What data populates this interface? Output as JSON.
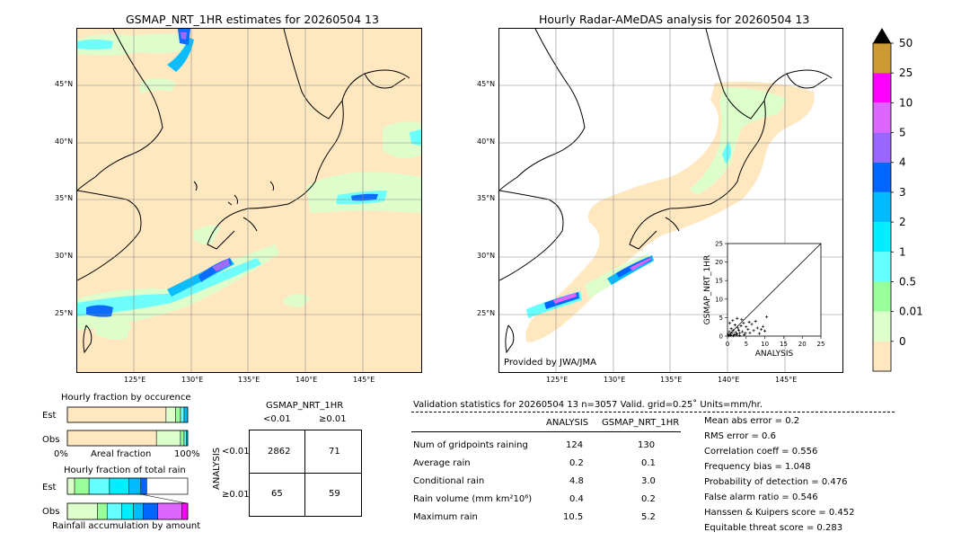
{
  "left_map": {
    "title": "GSMAP_NRT_1HR estimates for 20260504 13",
    "lat_labels": [
      "45°N",
      "40°N",
      "35°N",
      "30°N",
      "25°N"
    ],
    "lon_labels": [
      "125°E",
      "130°E",
      "135°E",
      "140°E",
      "145°E"
    ]
  },
  "right_map": {
    "title": "Hourly Radar-AMeDAS analysis for 20260504 13",
    "lat_labels": [
      "45°N",
      "40°N",
      "35°N",
      "30°N",
      "25°N"
    ],
    "lon_labels": [
      "125°E",
      "130°E",
      "135°E",
      "140°E",
      "145°E"
    ],
    "credit": "Provided by JWA/JMA"
  },
  "colorbar": {
    "labels": [
      "50",
      "25",
      "10",
      "5",
      "4",
      "3",
      "2",
      "1",
      "0.5",
      "0.01",
      "0"
    ],
    "colors": [
      "#cc9933",
      "#ff00ff",
      "#dd66ff",
      "#9966ff",
      "#0066ff",
      "#00bbff",
      "#00eeff",
      "#66ffff",
      "#99ff99",
      "#ddffcc",
      "#ffe8c0"
    ]
  },
  "chart_data": [
    {
      "type": "scatter",
      "xlabel": "ANALYSIS",
      "ylabel": "GSMAP_NRT_1HR",
      "xlim": [
        0,
        25
      ],
      "ylim": [
        0,
        25
      ],
      "x_ticks": [
        "0",
        "5",
        "10",
        "15",
        "20",
        "25"
      ],
      "y_ticks": [
        "0",
        "5",
        "10",
        "15",
        "20",
        "25"
      ],
      "points": [
        [
          0.2,
          0.5
        ],
        [
          0.5,
          1.2
        ],
        [
          0.8,
          0.3
        ],
        [
          1.0,
          2.0
        ],
        [
          1.2,
          0.8
        ],
        [
          1.5,
          1.5
        ],
        [
          1.8,
          0.4
        ],
        [
          2.0,
          3.0
        ],
        [
          2.2,
          1.0
        ],
        [
          2.5,
          0.6
        ],
        [
          2.8,
          2.2
        ],
        [
          3.0,
          1.6
        ],
        [
          3.3,
          0.9
        ],
        [
          3.6,
          2.8
        ],
        [
          4.0,
          1.2
        ],
        [
          4.3,
          3.5
        ],
        [
          4.8,
          0.8
        ],
        [
          5.0,
          2.5
        ],
        [
          5.5,
          1.8
        ],
        [
          6.0,
          0.9
        ],
        [
          6.5,
          3.2
        ],
        [
          7.0,
          1.5
        ],
        [
          7.5,
          4.0
        ],
        [
          8.0,
          2.2
        ],
        [
          8.5,
          0.7
        ],
        [
          9.0,
          1.8
        ],
        [
          9.5,
          2.6
        ],
        [
          10.0,
          1.4
        ],
        [
          10.5,
          5.2
        ],
        [
          1.4,
          4.2
        ],
        [
          0.6,
          3.5
        ],
        [
          2.6,
          4.8
        ],
        [
          3.8,
          4.5
        ],
        [
          5.8,
          3.8
        ],
        [
          0.3,
          0.1
        ],
        [
          0.9,
          0.2
        ],
        [
          1.6,
          0.1
        ],
        [
          2.4,
          0.3
        ],
        [
          3.2,
          0.2
        ],
        [
          4.5,
          0.4
        ]
      ]
    },
    {
      "type": "bar",
      "title": "Hourly fraction by occurence",
      "categories": [
        "Est",
        "Obs"
      ],
      "xlabel": "Areal fraction",
      "x_ticks": [
        "0%",
        "100%"
      ],
      "series": [
        {
          "values": [
            0.82,
            0.74
          ]
        },
        {
          "values": [
            0.08,
            0.2
          ]
        },
        {
          "values": [
            0.04,
            0.03
          ]
        },
        {
          "values": [
            0.03,
            0.02
          ]
        },
        {
          "values": [
            0.03,
            0.01
          ]
        }
      ],
      "colors": [
        "#ffe8c0",
        "#ddffcc",
        "#99ff99",
        "#66ffff",
        "#00bbff"
      ]
    },
    {
      "type": "bar",
      "title": "Hourly fraction of total rain",
      "categories": [
        "Est",
        "Obs"
      ],
      "xlabel": "Rainfall accumulation by amount",
      "series": [
        {
          "values": [
            0.06,
            0.25
          ]
        },
        {
          "values": [
            0.12,
            0.08
          ]
        },
        {
          "values": [
            0.17,
            0.12
          ]
        },
        {
          "values": [
            0.16,
            0.1
          ]
        },
        {
          "values": [
            0.1,
            0.08
          ]
        },
        {
          "values": [
            0.05,
            0.12
          ]
        },
        {
          "values": [
            0.0,
            0.2
          ]
        },
        {
          "values": [
            0.0,
            0.05
          ]
        }
      ],
      "colors": [
        "#ddffcc",
        "#99ff99",
        "#66ffff",
        "#00eeff",
        "#00bbff",
        "#0066ff",
        "#dd66ff",
        "#ff00ff"
      ]
    },
    {
      "type": "table",
      "title": "GSMAP_NRT_1HR",
      "col_headers": [
        "<0.01",
        "≥0.01"
      ],
      "row_label": "ANALYSIS",
      "row_headers": [
        "<0.01",
        "≥0.01"
      ],
      "cells": [
        [
          "2862",
          "71"
        ],
        [
          "65",
          "59"
        ]
      ]
    }
  ],
  "validation": {
    "header": "Validation statistics for 20260504 13  n=3057 Valid. grid=0.25˚ Units=mm/hr.",
    "col_analysis": "ANALYSIS",
    "col_gsmap": "GSMAP_NRT_1HR",
    "rows": [
      {
        "label": "Num of gridpoints raining",
        "a": "124",
        "g": "130"
      },
      {
        "label": "Average rain",
        "a": "0.2",
        "g": "0.1"
      },
      {
        "label": "Conditional rain",
        "a": "4.8",
        "g": "3.0"
      },
      {
        "label": "Rain volume (mm km²10⁶)",
        "a": "0.4",
        "g": "0.2"
      },
      {
        "label": "Maximum rain",
        "a": "10.5",
        "g": "5.2"
      }
    ],
    "scores": [
      "Mean abs error =    0.2",
      "RMS error =    0.6",
      "Correlation coeff =  0.556",
      "Frequency bias =  1.048",
      "Probability of detection =  0.476",
      "False alarm ratio =  0.546",
      "Hanssen & Kuipers score =  0.452",
      "Equitable threat score =  0.283"
    ]
  }
}
